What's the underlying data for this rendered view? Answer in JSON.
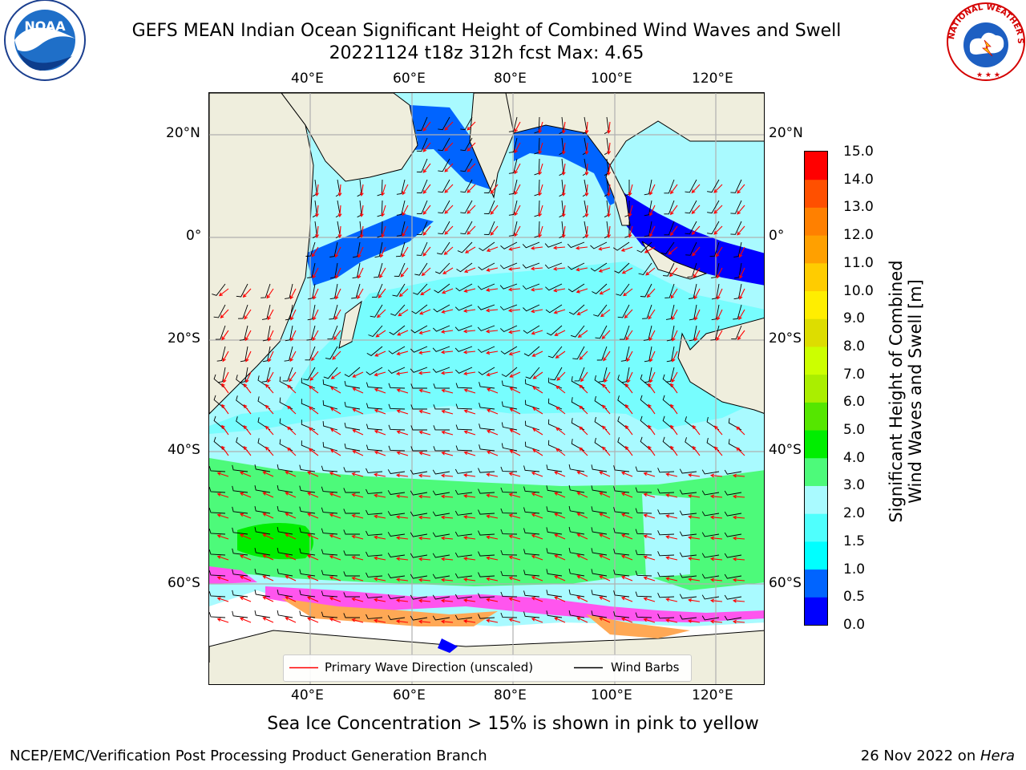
{
  "title": {
    "line1": "GEFS MEAN Indian Ocean Significant Height of Combined Wind Waves and Swell",
    "line2": "20221124 t18z 312h fcst   Max: 4.65"
  },
  "logos": {
    "left": {
      "icon": "noaa-logo-icon",
      "text": "NOAA",
      "ring_text": "NATIONAL OCEANIC AND ATMOSPHERIC ADMINISTRATION · U.S. DEPARTMENT OF COMMERCE"
    },
    "right": {
      "icon": "nws-logo-icon",
      "ring_text": "NATIONAL WEATHER SERVICE"
    }
  },
  "map": {
    "lon_ticks": [
      "40°E",
      "60°E",
      "80°E",
      "100°E",
      "120°E"
    ],
    "lat_ticks": [
      "20°N",
      "0°",
      "20°S",
      "40°S",
      "60°S"
    ],
    "lon_range": [
      20,
      129
    ],
    "lat_range": [
      -79,
      28
    ],
    "colors": {
      "land": "#efeedd",
      "ice_pink": "#ff55ee",
      "ice_orange": "#ffa855",
      "wave_arrow": "#ff0000",
      "wind_barb": "#000000"
    }
  },
  "colorbar": {
    "ticks": [
      "0.0",
      "0.5",
      "1.0",
      "1.5",
      "2.0",
      "3.0",
      "4.0",
      "5.0",
      "6.0",
      "7.0",
      "8.0",
      "9.0",
      "10.0",
      "11.0",
      "12.0",
      "13.0",
      "14.0",
      "15.0"
    ],
    "colors": [
      "#0000ff",
      "#0064ff",
      "#00ffff",
      "#4ffffd",
      "#a9faff",
      "#4dfa7a",
      "#00ee00",
      "#55e600",
      "#aaee00",
      "#ccff00",
      "#dddd00",
      "#ffee00",
      "#ffcc00",
      "#ffa000",
      "#ff8000",
      "#ff5000",
      "#ff0000"
    ],
    "label": "Significant Height of Combined Wind Waves and Swell [m]"
  },
  "legend": {
    "wave_label": "Primary Wave Direction (unscaled)",
    "wind_label": "Wind Barbs"
  },
  "footer": {
    "note": "Sea Ice Concentration > 15% is shown in pink to yellow",
    "credit_left": "NCEP/EMC/Verification Post Processing Product Generation Branch",
    "credit_right_date": "26 Nov 2022 on ",
    "credit_right_host": "Hera"
  }
}
